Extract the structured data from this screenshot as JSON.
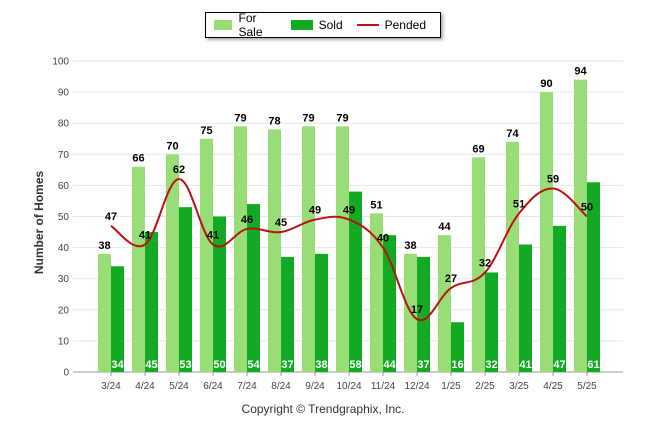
{
  "chart_data": {
    "type": "bar",
    "categories": [
      "3/24",
      "4/24",
      "5/24",
      "6/24",
      "7/24",
      "8/24",
      "9/24",
      "10/24",
      "11/24",
      "12/24",
      "1/25",
      "2/25",
      "3/25",
      "4/25",
      "5/25"
    ],
    "series": [
      {
        "name": "For Sale",
        "type": "bar",
        "color": "#99dd77",
        "values": [
          38,
          66,
          70,
          75,
          79,
          78,
          79,
          79,
          51,
          38,
          44,
          69,
          74,
          90,
          94
        ]
      },
      {
        "name": "Sold",
        "type": "bar",
        "color": "#11aa22",
        "values": [
          34,
          45,
          53,
          50,
          54,
          37,
          38,
          58,
          44,
          37,
          16,
          32,
          41,
          47,
          61
        ]
      },
      {
        "name": "Pended",
        "type": "line",
        "color": "#bb1111",
        "values": [
          47,
          41,
          62,
          41,
          46,
          45,
          49,
          49,
          40,
          17,
          27,
          32,
          51,
          59,
          50
        ]
      }
    ],
    "ylabel": "Number of Homes",
    "xlabel": "",
    "ylim": [
      0,
      100
    ],
    "yticks": [
      0,
      10,
      20,
      30,
      40,
      50,
      60,
      70,
      80,
      90,
      100
    ],
    "grid": true,
    "legend_position": "top-center"
  },
  "legend": {
    "for_sale": "For Sale",
    "sold": "Sold",
    "pended": "Pended"
  },
  "footer": {
    "copyright": "Copyright © Trendgraphix, Inc."
  }
}
